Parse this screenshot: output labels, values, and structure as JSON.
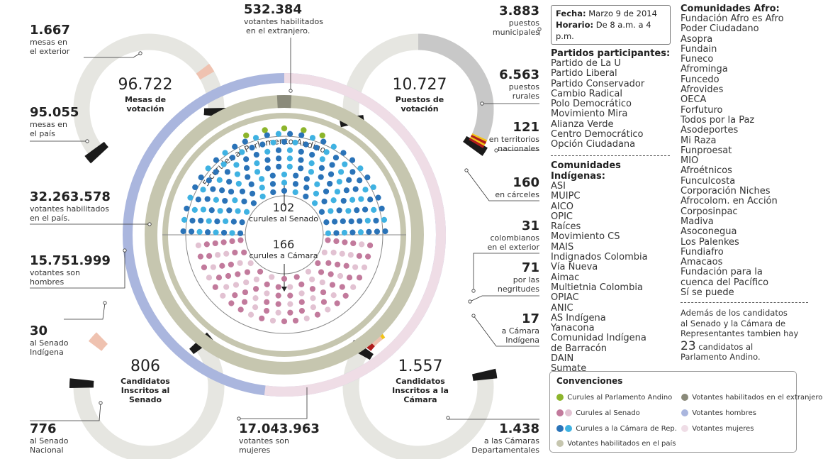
{
  "chart_data": {
    "type": "infographic",
    "date_box": {
      "fecha_label": "Fecha:",
      "fecha": "Marzo 9 de 2014",
      "horario_label": "Horario:",
      "horario": "De 8 a.m. a 4 p.m."
    },
    "center": {
      "senate_count": "102",
      "senate_label": "curules al Senado",
      "camara_count": "166",
      "camara_label": "curules a Cámara",
      "andino_label": "5 curules al Parlamento Andino"
    },
    "seats": {
      "parlamento_andino": 5,
      "senado": 102,
      "camara": 166
    },
    "voters": {
      "total_pais": 32263578,
      "hombres": 15751999,
      "mujeres": 17043963,
      "extranjero": 532384
    },
    "mesas": {
      "total": 96722,
      "exterior": 1667,
      "pais": 95055
    },
    "puestos": {
      "total": 10727,
      "municipales": 3883,
      "rurales": 6563,
      "territorios_nacionales": 121,
      "carceles": 160
    },
    "camara_candidatos": {
      "total": 1557,
      "colombianos_exterior": 31,
      "negritudes": 71,
      "indigena": 17,
      "departamentales": 1438
    },
    "senado_candidatos": {
      "total": 806,
      "indigena": 30,
      "nacional": 776
    },
    "colors": {
      "andino": "#8db52c",
      "senado_dark": "#c27a9c",
      "senado_light": "#e2c2d2",
      "camara_dark": "#2a73b8",
      "camara_light": "#3fb2e2",
      "pais": "#c6c6af",
      "extranjero": "#8a8a7a",
      "hombres": "#aab6de",
      "mujeres": "#efdde6",
      "ring_light": "#e6e6e1",
      "ring_gray": "#c8c8c8",
      "tab_dark": "#1a1a1a",
      "tab_pink": "#efc2b0",
      "tab_red": "#b01c1c",
      "tab_yellow": "#f2c318"
    }
  },
  "tl": {
    "value": "96.722",
    "label1": "Mesas de",
    "label2": "votación"
  },
  "tr": {
    "value": "10.727",
    "label1": "Puestos de",
    "label2": "votación"
  },
  "bl": {
    "value": "806",
    "label1": "Candidatos",
    "label2": "Inscritos al",
    "label3": "Senado"
  },
  "br": {
    "value": "1.557",
    "label1": "Candidatos",
    "label2": "Inscritos a la",
    "label3": "Cámara"
  },
  "callouts": {
    "mesas_ext": {
      "value": "1.667",
      "l1": "mesas en",
      "l2": "el exterior"
    },
    "mesas_pais": {
      "value": "95.055",
      "l1": "mesas en",
      "l2": "el país"
    },
    "votantes_pais": {
      "value": "32.263.578",
      "l1": "votantes habilitados",
      "l2": "en el país."
    },
    "hombres": {
      "value": "15.751.999",
      "l1": "votantes son",
      "l2": "hombres"
    },
    "senado_ind": {
      "value": "30",
      "l1": "al Senado",
      "l2": "Indígena"
    },
    "senado_nac": {
      "value": "776",
      "l1": "al Senado",
      "l2": "Nacional"
    },
    "extranjero": {
      "value": "532.384",
      "l1": "votantes habilitados",
      "l2": "en el extranjero."
    },
    "mujeres": {
      "value": "17.043.963",
      "l1": "votantes son",
      "l2": "mujeres"
    },
    "municipales": {
      "value": "3.883",
      "l1": "puestos",
      "l2": "municipales"
    },
    "rurales": {
      "value": "6.563",
      "l1": "puestos",
      "l2": "rurales"
    },
    "territorios": {
      "value": "121",
      "l1": "en territorios",
      "l2": "nacionales"
    },
    "carceles": {
      "value": "160",
      "l1": "en cárceles"
    },
    "exterior": {
      "value": "31",
      "l1": "colombianos",
      "l2": "en el exterior"
    },
    "negritudes": {
      "value": "71",
      "l1": "por las",
      "l2": "negritudes"
    },
    "indigena": {
      "value": "17",
      "l1": "a Cámara",
      "l2": "Indígena"
    },
    "departamentales": {
      "value": "1.438",
      "l1": "a las Cámaras",
      "l2": "Departamentales"
    }
  },
  "partidos": {
    "title": "Partidos participantes:",
    "items": [
      "Partido de La U",
      "Partido Liberal",
      "Partido Conservador",
      "Cambio Radical",
      "Polo Democrático",
      "Movimiento Mira",
      "Alianza Verde",
      "Centro Democrático",
      "Opción Ciudadana"
    ]
  },
  "indigenas": {
    "title": "Comunidades Indígenas:",
    "items": [
      "ASI",
      "MUIPC",
      "AICO",
      "OPIC",
      "Raíces",
      "Movimiento CS",
      "MAIS",
      "Indignados Colombia",
      "Vía Nueva",
      "Aimac",
      "Multietnia Colombia",
      "OPIAC",
      "ANIC",
      "AS Indígena",
      "Yanacona",
      "Comunidad Indígena",
      "de Barracón",
      "DAIN",
      "Sumate"
    ]
  },
  "afro": {
    "title": "Comunidades Afro:",
    "items": [
      "Fundación Afro es Afro",
      "Poder Ciudadano",
      "Asopra",
      "Fundain",
      "Funeco",
      "Afrominga",
      "Funcedo",
      "Afrovides",
      "OECA",
      "Forfuturo",
      "Todos por la Paz",
      "Asodeportes",
      "Mi Raza",
      "Funproesat",
      "MIO",
      "Afroétnicos",
      "Funculcosta",
      "Corporación Niches",
      "Afrocolom. en Acción",
      "Corposinpac",
      "Madiva",
      "Asoconegua",
      "Los Palenkes",
      "Fundiafro",
      "Amacaos",
      "Fundación para la",
      "cuenca del Pacífico",
      "Sí se puede"
    ]
  },
  "andino_note": {
    "l1": "Además de los candidatos",
    "l2": "al Senado y la Cámara de",
    "l3": "Representantes tambien hay",
    "num": "23",
    "l4": "candidatos al",
    "l5": "Parlamento Andino."
  },
  "legend": {
    "title": "Convenciones",
    "andino": "Curules al Parlamento Andino",
    "senado": "Curules al Senado",
    "camara": "Curules a la Cámara de Rep.",
    "pais": "Votantes habilitados en el país",
    "extranjero": "Votantes habilitados en el extranjero",
    "hombres": "Votantes hombres",
    "mujeres": "Votantes mujeres"
  }
}
